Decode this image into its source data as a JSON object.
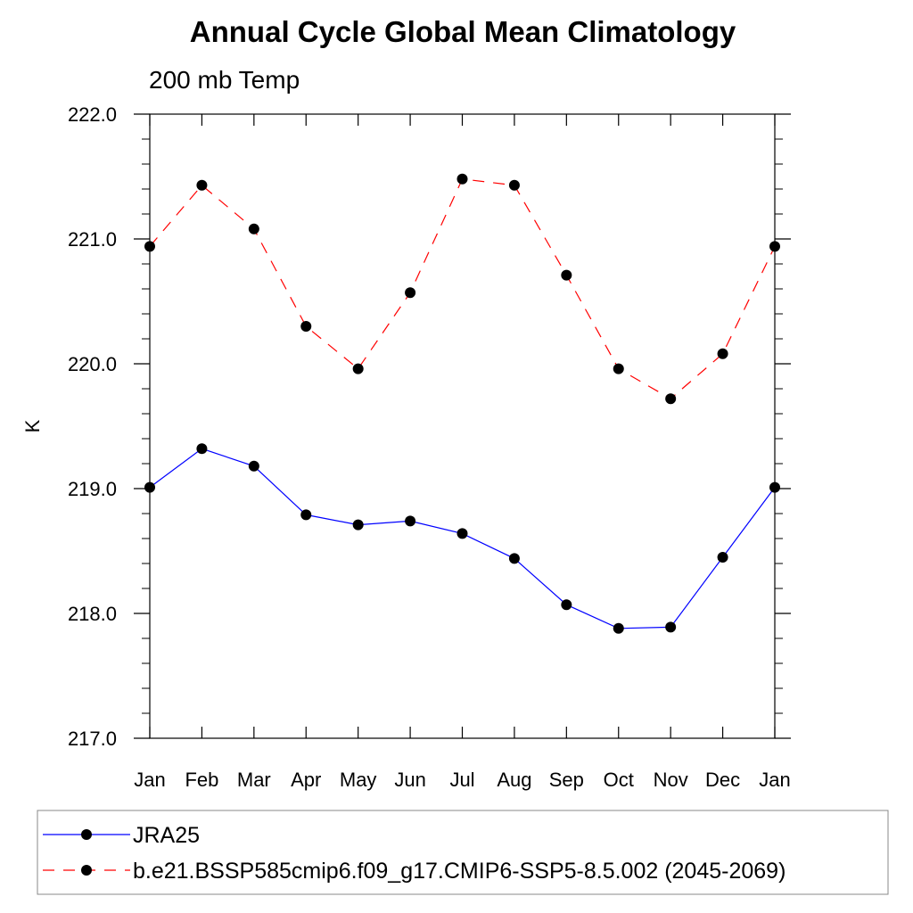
{
  "chart_data": {
    "type": "line",
    "title": "Annual Cycle Global Mean Climatology",
    "subtitle": "200 mb Temp",
    "xlabel": "",
    "ylabel": "K",
    "categories": [
      "Jan",
      "Feb",
      "Mar",
      "Apr",
      "May",
      "Jun",
      "Jul",
      "Aug",
      "Sep",
      "Oct",
      "Nov",
      "Dec",
      "Jan"
    ],
    "ylim": [
      217.0,
      222.0
    ],
    "yticks": [
      "217.0",
      "218.0",
      "219.0",
      "220.0",
      "221.0",
      "222.0"
    ],
    "grid": false,
    "legend_position": "bottom",
    "series": [
      {
        "name": "JRA25",
        "color": "#0000ff",
        "line_style": "solid",
        "marker": "filled-circle",
        "values": [
          219.01,
          219.32,
          219.18,
          218.79,
          218.71,
          218.74,
          218.64,
          218.44,
          218.07,
          217.88,
          217.89,
          218.45,
          219.01
        ]
      },
      {
        "name": "b.e21.BSSP585cmip6.f09_g17.CMIP6-SSP5-8.5.002 (2045-2069)",
        "color": "#ff0000",
        "line_style": "dashed",
        "marker": "filled-circle",
        "values": [
          220.94,
          221.43,
          221.08,
          220.3,
          219.96,
          220.57,
          221.48,
          221.43,
          220.71,
          219.96,
          219.72,
          220.08,
          220.94
        ]
      }
    ]
  }
}
